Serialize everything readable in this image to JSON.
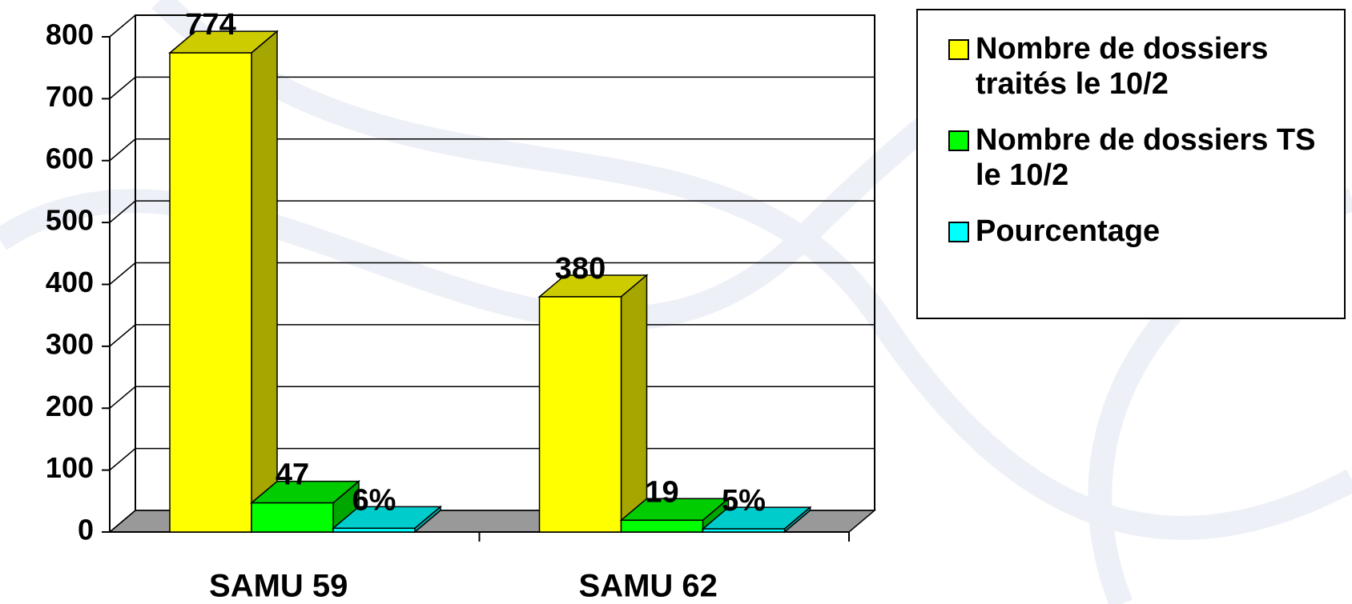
{
  "chart_data": {
    "type": "bar3d",
    "categories": [
      "SAMU 59",
      "SAMU 62"
    ],
    "series": [
      {
        "name": "Nombre de dossiers traités le 10/2",
        "color": "#ffff00",
        "values": [
          774,
          380
        ]
      },
      {
        "name": "Nombre de dossiers TS le 10/2",
        "color": "#00ff00",
        "values": [
          47,
          19
        ]
      },
      {
        "name": "Pourcentage",
        "color": "#00ffff",
        "values": [
          6,
          5
        ],
        "value_labels": [
          "6%",
          "5%"
        ]
      }
    ],
    "ylim": [
      0,
      800
    ],
    "yticks": [
      0,
      100,
      200,
      300,
      400,
      500,
      600,
      700,
      800
    ],
    "grid": true,
    "legend": "upper right"
  }
}
